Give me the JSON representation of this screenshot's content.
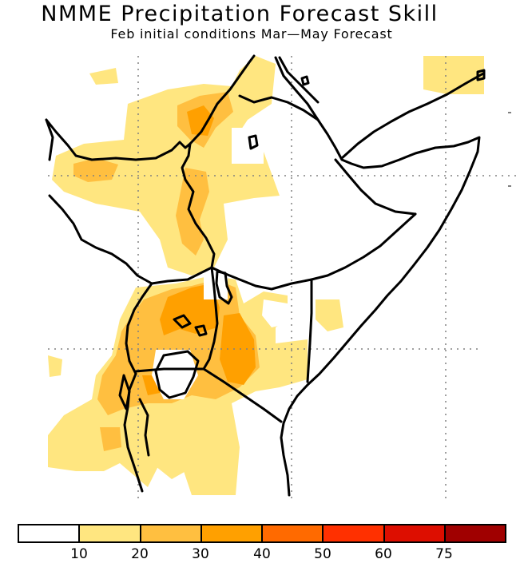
{
  "title": "NMME Precipitation Forecast Skill",
  "subtitle": "Feb initial conditions  Mar—May Forecast",
  "legend": {
    "colors": [
      "#ffffff",
      "#ffe680",
      "#ffbf40",
      "#ffa000",
      "#ff6a00",
      "#ff3000",
      "#dd0e00",
      "#a00000"
    ],
    "labels": [
      "10",
      "20",
      "30",
      "40",
      "50",
      "60",
      "75"
    ]
  },
  "colors": {
    "coast": "#000000",
    "grid": "#808080"
  }
}
